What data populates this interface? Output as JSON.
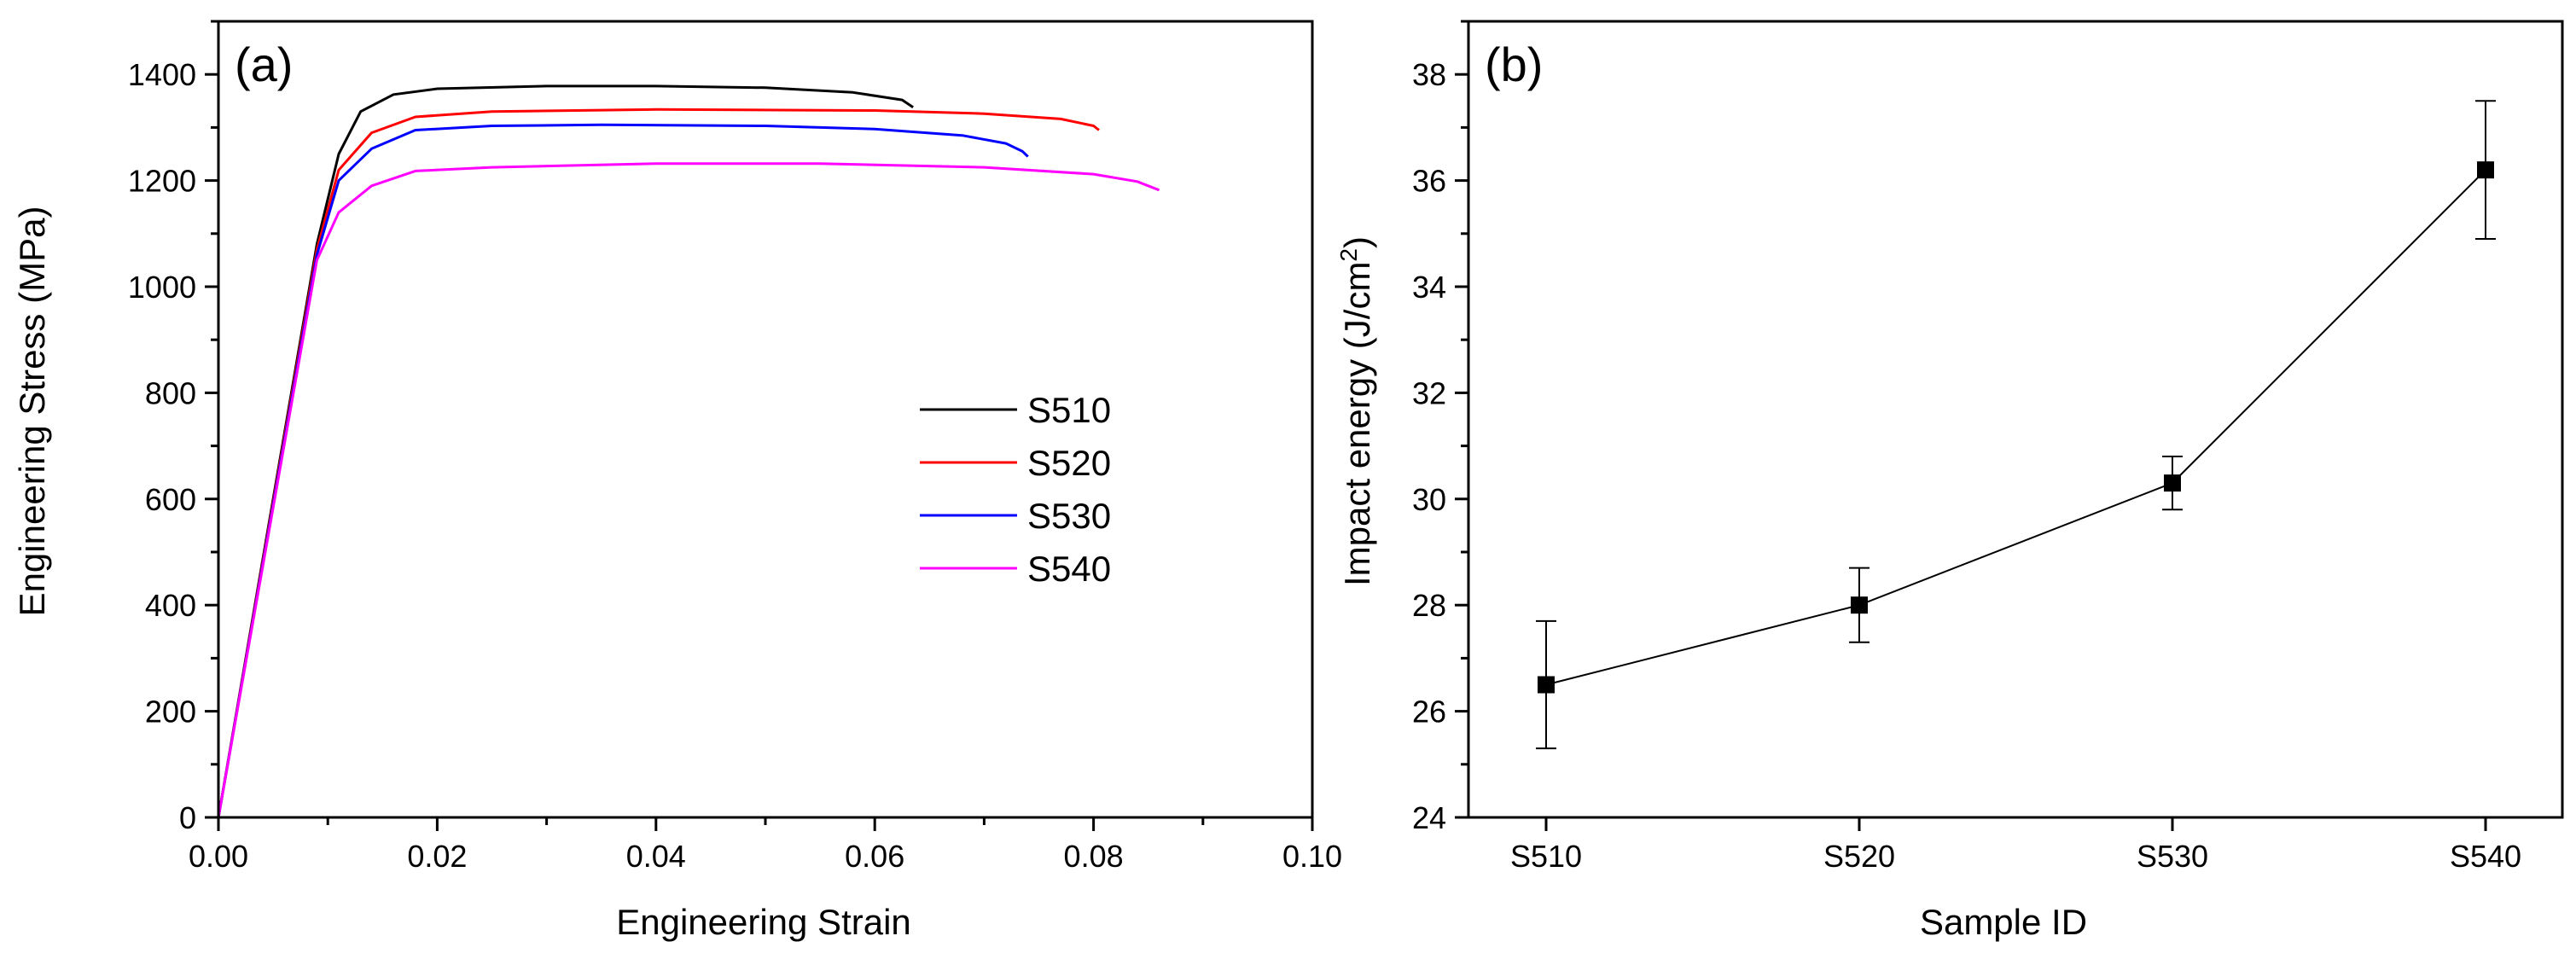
{
  "chart_data": [
    {
      "type": "line",
      "panel_label": "(a)",
      "xlabel": "Engineering Strain",
      "ylabel": "Engineering Stress (MPa)",
      "xlim": [
        0,
        0.1
      ],
      "ylim": [
        0,
        1500
      ],
      "xticks": [
        0.0,
        0.02,
        0.04,
        0.06,
        0.08,
        0.1
      ],
      "xtick_labels": [
        "0.00",
        "0.02",
        "0.04",
        "0.06",
        "0.08",
        "0.10"
      ],
      "yticks": [
        0,
        200,
        400,
        600,
        800,
        1000,
        1200,
        1400
      ],
      "ytick_labels": [
        "0",
        "200",
        "400",
        "600",
        "800",
        "1000",
        "1200",
        "1400"
      ],
      "legend_position": "center-right",
      "series": [
        {
          "name": "S510",
          "color": "#000000",
          "points": [
            [
              0,
              0
            ],
            [
              0.009,
              1080
            ],
            [
              0.011,
              1250
            ],
            [
              0.013,
              1330
            ],
            [
              0.016,
              1362
            ],
            [
              0.02,
              1373
            ],
            [
              0.03,
              1378
            ],
            [
              0.04,
              1378
            ],
            [
              0.05,
              1375
            ],
            [
              0.058,
              1366
            ],
            [
              0.0625,
              1352
            ],
            [
              0.0635,
              1338
            ]
          ]
        },
        {
          "name": "S520",
          "color": "#ff0000",
          "points": [
            [
              0,
              0
            ],
            [
              0.009,
              1070
            ],
            [
              0.011,
              1220
            ],
            [
              0.014,
              1290
            ],
            [
              0.018,
              1320
            ],
            [
              0.025,
              1330
            ],
            [
              0.04,
              1334
            ],
            [
              0.06,
              1332
            ],
            [
              0.07,
              1326
            ],
            [
              0.077,
              1316
            ],
            [
              0.08,
              1303
            ],
            [
              0.0805,
              1295
            ]
          ]
        },
        {
          "name": "S530",
          "color": "#0000ff",
          "points": [
            [
              0,
              0
            ],
            [
              0.009,
              1060
            ],
            [
              0.011,
              1200
            ],
            [
              0.014,
              1260
            ],
            [
              0.018,
              1295
            ],
            [
              0.025,
              1303
            ],
            [
              0.035,
              1305
            ],
            [
              0.05,
              1303
            ],
            [
              0.06,
              1297
            ],
            [
              0.068,
              1285
            ],
            [
              0.072,
              1270
            ],
            [
              0.0735,
              1255
            ],
            [
              0.074,
              1245
            ]
          ]
        },
        {
          "name": "S540",
          "color": "#ff00ff",
          "points": [
            [
              0,
              0
            ],
            [
              0.009,
              1050
            ],
            [
              0.011,
              1140
            ],
            [
              0.014,
              1190
            ],
            [
              0.018,
              1218
            ],
            [
              0.025,
              1225
            ],
            [
              0.04,
              1232
            ],
            [
              0.055,
              1232
            ],
            [
              0.07,
              1225
            ],
            [
              0.08,
              1212
            ],
            [
              0.084,
              1198
            ],
            [
              0.086,
              1182
            ]
          ]
        }
      ]
    },
    {
      "type": "line",
      "panel_label": "(b)",
      "xlabel": "Sample ID",
      "ylabel": "Impact energy (J/cm²)",
      "ylabel_main": "Impact energy (J/cm",
      "ylabel_sup": "2",
      "ylabel_end": ")",
      "ylim": [
        24,
        39
      ],
      "yticks": [
        24,
        26,
        28,
        30,
        32,
        34,
        36,
        38
      ],
      "ytick_labels": [
        "24",
        "26",
        "28",
        "30",
        "32",
        "34",
        "36",
        "38"
      ],
      "categories": [
        "S510",
        "S520",
        "S530",
        "S540"
      ],
      "values": [
        26.5,
        28.0,
        30.3,
        36.2
      ],
      "errors": [
        1.2,
        0.7,
        0.5,
        1.3
      ],
      "marker": "square",
      "color": "#000000"
    }
  ]
}
